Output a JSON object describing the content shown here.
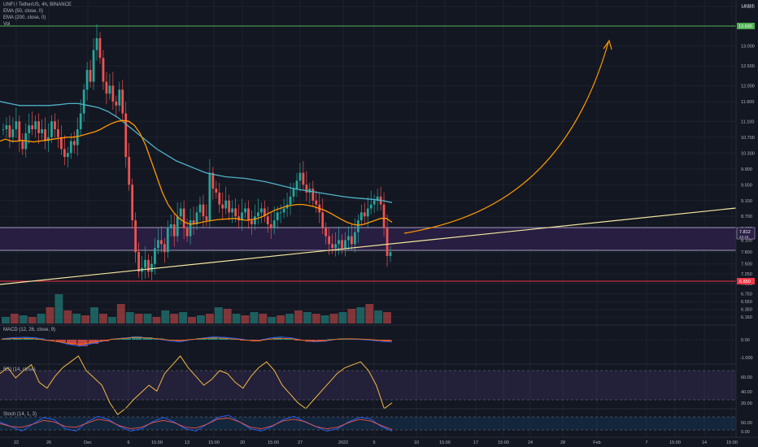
{
  "header": {
    "symbol_title": "UNFI / TetherUS, 4h, BINANCE",
    "currency": "USDT"
  },
  "legend": {
    "ema50": "EMA (50, close, 0)",
    "ema200": "EMA (200, close, 0)",
    "vol": "Vol",
    "macd": "MACD (12, 26, close, 9)",
    "rsi": "RSI (14, close)",
    "stoch": "Stoch (14, 1, 3)"
  },
  "colors": {
    "background": "#131722",
    "up_candle": "#26a69a",
    "down_candle": "#ef5350",
    "ema50": "#ff9800",
    "ema200": "#4fb3c8",
    "resistance_line": "#4caf50",
    "support_line": "#f23645",
    "trendline": "#f5e6a0",
    "zone_fill": "#2a1f45",
    "rsi_line": "#f5b940",
    "rsi_band": "#7e57c2",
    "stoch_k": "#2962ff",
    "stoch_d": "#ef5350"
  },
  "price_badges": {
    "resistance": "13.690",
    "current": "7.812",
    "current_sub": "42:18",
    "support": "6.850"
  },
  "chart_data": [
    {
      "type": "candlestick",
      "title": "UNFI / TetherUS, 4h, BINANCE",
      "y_axis_ticks": [
        "14.000",
        "13.500",
        "13.000",
        "12.500",
        "12.000",
        "11.600",
        "11.100",
        "10.700",
        "10.300",
        "9.900",
        "9.500",
        "9.100",
        "8.700",
        "8.400",
        "8.100",
        "7.800",
        "7.500",
        "7.250",
        "7.000",
        "6.750",
        "6.550",
        "6.350",
        "6.160"
      ],
      "x_axis_ticks": [
        "22",
        "26",
        "Dec",
        "6",
        "15:00",
        "13",
        "15:00",
        "20",
        "15:00",
        "27",
        "2022",
        "5",
        "10",
        "15:00",
        "17",
        "15:00",
        "24",
        "28",
        "Feb",
        "7",
        "15:00",
        "14",
        "15:00"
      ],
      "ylim": [
        6.16,
        14.0
      ],
      "horizontal_levels": [
        13.69,
        6.85
      ],
      "zone": [
        7.5,
        7.9
      ],
      "close_series": [
        10.9,
        11.0,
        10.7,
        10.9,
        11.1,
        10.6,
        10.4,
        10.8,
        11.0,
        10.9,
        11.1,
        10.8,
        10.9,
        10.6,
        10.7,
        11.1,
        10.9,
        10.7,
        10.4,
        10.2,
        10.3,
        10.6,
        10.5,
        10.9,
        11.3,
        11.9,
        12.4,
        12.1,
        12.9,
        13.2,
        12.7,
        12.1,
        11.8,
        12.0,
        11.6,
        11.5,
        11.9,
        11.3,
        10.2,
        9.5,
        8.6,
        7.8,
        7.3,
        7.4,
        7.6,
        7.3,
        7.5,
        7.9,
        8.1,
        8.0,
        7.8,
        8.4,
        8.5,
        8.2,
        8.7,
        8.9,
        8.4,
        8.2,
        8.6,
        8.5,
        8.8,
        9.0,
        8.7,
        8.6,
        9.8,
        9.4,
        9.3,
        9.0,
        8.9,
        9.1,
        8.8,
        8.9,
        8.7,
        8.6,
        8.8,
        8.9,
        8.6,
        8.5,
        8.7,
        8.8,
        8.9,
        8.7,
        8.5,
        8.4,
        8.6,
        8.8,
        8.8,
        8.9,
        9.0,
        9.2,
        9.4,
        9.6,
        9.8,
        9.5,
        9.3,
        9.4,
        9.1,
        9.0,
        8.8,
        8.4,
        8.2,
        8.0,
        7.9,
        8.0,
        8.1,
        7.9,
        8.1,
        8.2,
        8.0,
        8.3,
        8.6,
        8.8,
        8.7,
        8.9,
        9.0,
        9.1,
        9.2,
        9.0,
        8.4,
        7.7,
        7.8
      ],
      "ema50": [
        10.6,
        10.65,
        10.6,
        10.6,
        10.62,
        10.6,
        10.58,
        10.6,
        10.62,
        10.64,
        10.66,
        10.68,
        10.7,
        10.7,
        10.72,
        10.76,
        10.8,
        10.84,
        10.9,
        10.98,
        11.05,
        11.1,
        11.12,
        11.1,
        11.0,
        10.8,
        10.5,
        10.1,
        9.7,
        9.3,
        9.0,
        8.8,
        8.65,
        8.55,
        8.5,
        8.52,
        8.55,
        8.58,
        8.6,
        8.62,
        8.63,
        8.64,
        8.65,
        8.62,
        8.6,
        8.62,
        8.65,
        8.7,
        8.78,
        8.85,
        8.9,
        8.95,
        8.98,
        9.0,
        9.0,
        8.98,
        8.95,
        8.9,
        8.85,
        8.78,
        8.7,
        8.62,
        8.55,
        8.5,
        8.48,
        8.5,
        8.55,
        8.6,
        8.65,
        8.65,
        8.55
      ],
      "ema200": [
        11.6,
        11.55,
        11.5,
        11.5,
        11.5,
        11.5,
        11.52,
        11.55,
        11.55,
        11.5,
        11.45,
        11.35,
        11.2,
        11.0,
        10.8,
        10.6,
        10.4,
        10.25,
        10.1,
        10.0,
        9.9,
        9.8,
        9.75,
        9.7,
        9.68,
        9.66,
        9.62,
        9.58,
        9.52,
        9.46,
        9.4,
        9.36,
        9.32,
        9.28,
        9.24,
        9.2,
        9.17,
        9.15,
        9.13,
        9.1,
        9.05
      ],
      "macd_histogram": [
        0.05,
        0.1,
        0.12,
        0.08,
        -0.05,
        -0.15,
        -0.3,
        -0.4,
        -0.25,
        -0.1,
        0.05,
        0.12,
        0.2,
        0.15,
        0.08,
        -0.02,
        -0.08,
        0.02,
        0.1,
        0.16,
        0.12,
        0.05,
        -0.05,
        -0.1,
        0.05,
        0.12,
        0.08,
        -0.05,
        -0.12,
        -0.08,
        0.04,
        0.08,
        0.06,
        0.02,
        -0.05,
        -0.1
      ],
      "rsi": [
        58,
        62,
        55,
        60,
        64,
        52,
        48,
        56,
        62,
        66,
        70,
        60,
        55,
        50,
        38,
        30,
        34,
        40,
        45,
        50,
        46,
        58,
        64,
        70,
        62,
        56,
        50,
        54,
        60,
        58,
        52,
        48,
        56,
        62,
        66,
        60,
        50,
        44,
        38,
        34,
        40,
        46,
        52,
        58,
        62,
        64,
        66,
        60,
        50,
        34,
        38
      ],
      "stoch_k": [
        60,
        40,
        20,
        50,
        80,
        70,
        30,
        20,
        60,
        85,
        70,
        40,
        20,
        30,
        60,
        80,
        60,
        30,
        20,
        50,
        80,
        90,
        60,
        30,
        20,
        40,
        70,
        85,
        60,
        40,
        20,
        30,
        60,
        80,
        75,
        40,
        20
      ],
      "volume": [
        0.2,
        0.3,
        0.25,
        0.2,
        0.3,
        0.5,
        0.9,
        0.4,
        0.3,
        0.25,
        0.5,
        0.3,
        0.2,
        0.6,
        0.35,
        0.3,
        0.3,
        0.2,
        0.4,
        0.3,
        0.35,
        0.2,
        0.25,
        0.3,
        0.5,
        0.45,
        0.3,
        0.25,
        0.35,
        0.3,
        0.2,
        0.25,
        0.3,
        0.4,
        0.35,
        0.3,
        0.25,
        0.3,
        0.35,
        0.45,
        0.5,
        0.6,
        0.4,
        0.35
      ]
    }
  ]
}
